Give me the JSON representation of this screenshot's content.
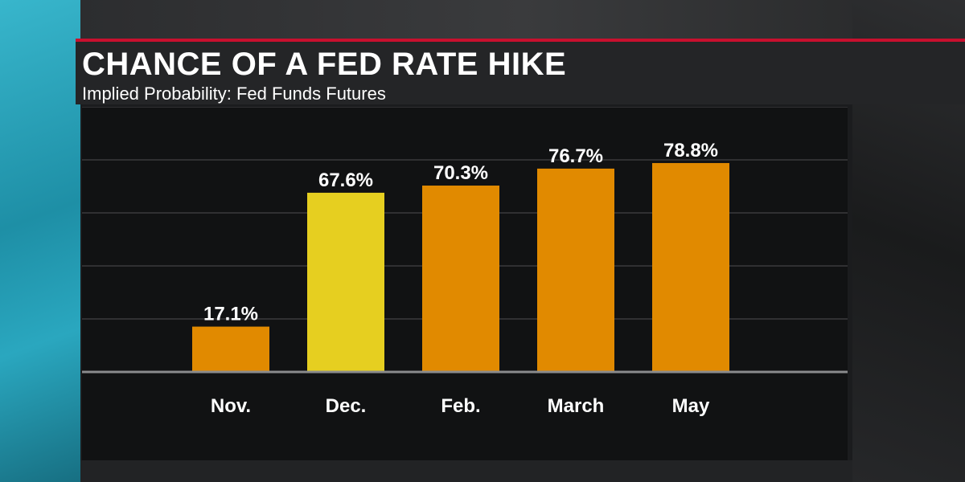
{
  "header": {
    "title": "CHANCE OF A FED RATE HIKE",
    "subtitle": "Implied Probability: Fed Funds Futures"
  },
  "chart_data": {
    "type": "bar",
    "categories": [
      "Nov.",
      "Dec.",
      "Feb.",
      "March",
      "May"
    ],
    "values": [
      17.1,
      67.6,
      70.3,
      76.7,
      78.8
    ],
    "value_labels": [
      "17.1%",
      "67.6%",
      "70.3%",
      "76.7%",
      "78.8%"
    ],
    "title": "CHANCE OF A FED RATE HIKE",
    "subtitle": "Implied Probability: Fed Funds Futures",
    "xlabel": "",
    "ylabel": "",
    "ylim": [
      0,
      100
    ],
    "grid": true,
    "highlight_index": 1,
    "colors": {
      "bar": "#e18a00",
      "highlight": "#e6cf20",
      "gridline": "#3a3b3d",
      "baseline": "#8a8b8d"
    }
  }
}
